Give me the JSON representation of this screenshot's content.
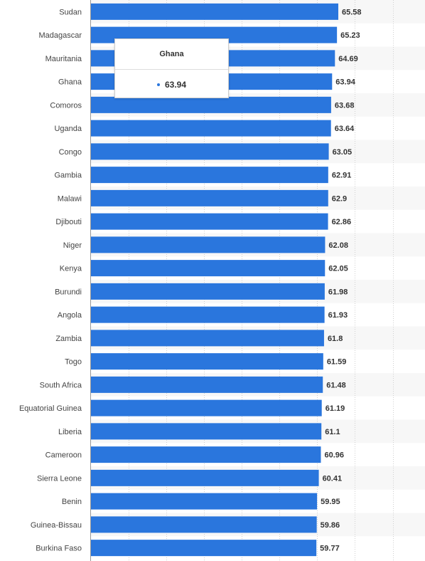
{
  "chart_data": {
    "type": "bar",
    "orientation": "horizontal",
    "categories": [
      "Sudan",
      "Madagascar",
      "Mauritania",
      "Ghana",
      "Comoros",
      "Uganda",
      "Congo",
      "Gambia",
      "Malawi",
      "Djibouti",
      "Niger",
      "Kenya",
      "Burundi",
      "Angola",
      "Zambia",
      "Togo",
      "South Africa",
      "Equatorial Guinea",
      "Liberia",
      "Cameroon",
      "Sierra Leone",
      "Benin",
      "Guinea-Bissau",
      "Burkina Faso"
    ],
    "values": [
      65.58,
      65.23,
      64.69,
      63.94,
      63.68,
      63.64,
      63.05,
      62.91,
      62.9,
      62.86,
      62.08,
      62.05,
      61.98,
      61.93,
      61.8,
      61.59,
      61.48,
      61.19,
      61.1,
      60.96,
      60.41,
      59.95,
      59.86,
      59.77
    ],
    "value_labels": [
      "65.58",
      "65.23",
      "64.69",
      "63.94",
      "63.68",
      "63.64",
      "63.05",
      "62.91",
      "62.9",
      "62.86",
      "62.08",
      "62.05",
      "61.98",
      "61.93",
      "61.8",
      "61.59",
      "61.48",
      "61.19",
      "61.1",
      "60.96",
      "60.41",
      "59.95",
      "59.86",
      "59.77"
    ],
    "xlim": [
      0,
      80
    ],
    "bar_color": "#2a76dd",
    "grid": true,
    "title": "",
    "xlabel": "",
    "ylabel": ""
  },
  "tooltip": {
    "title": "Ghana",
    "value": "63.94",
    "dot_color": "#2a76dd"
  }
}
